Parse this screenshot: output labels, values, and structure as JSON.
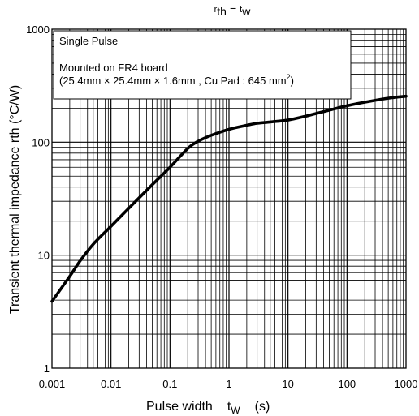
{
  "chart_data": {
    "type": "line",
    "title": {
      "main_r": "r",
      "sub_th": "th",
      "dash": "−",
      "main_t": "t",
      "sub_w": "w"
    },
    "xlabel": {
      "text": "Pulse width",
      "symbol": "t",
      "sub": "W",
      "unit": "(s)"
    },
    "ylabel": {
      "text": "Transient thermal impedance   rth (°C/W)"
    },
    "x_scale": "log",
    "y_scale": "log",
    "xlim": [
      0.001,
      1000
    ],
    "ylim": [
      1,
      1000
    ],
    "x_ticks": [
      {
        "value": 0.001,
        "label": "0.001"
      },
      {
        "value": 0.01,
        "label": "0.01"
      },
      {
        "value": 0.1,
        "label": "0.1"
      },
      {
        "value": 1,
        "label": "1"
      },
      {
        "value": 10,
        "label": "10"
      },
      {
        "value": 100,
        "label": "100"
      },
      {
        "value": 1000,
        "label": "1000"
      }
    ],
    "y_ticks": [
      {
        "value": 1,
        "label": "1"
      },
      {
        "value": 10,
        "label": "10"
      },
      {
        "value": 100,
        "label": "100"
      },
      {
        "value": 1000,
        "label": "1000"
      }
    ],
    "grid": true,
    "annotation": {
      "line1": "Single Pulse",
      "line2": "Mounted on FR4 board",
      "line3": "(25.4mm × 25.4mm × 1.6mm , Cu Pad : 645 mm",
      "line3_sup": "2",
      "line3_end": ")"
    },
    "series": [
      {
        "x": [
          0.001,
          0.002,
          0.003,
          0.005,
          0.01,
          0.02,
          0.05,
          0.1,
          0.2,
          0.3,
          0.5,
          1,
          2,
          3,
          5,
          10,
          20,
          50,
          100,
          200,
          500,
          1000
        ],
        "y": [
          3.9,
          6.5,
          8.9,
          12.5,
          18,
          26,
          42,
          60,
          88,
          102,
          115,
          130,
          141,
          147,
          151,
          157,
          170,
          192,
          210,
          226,
          245,
          255
        ]
      }
    ],
    "line_color": "#000000"
  }
}
